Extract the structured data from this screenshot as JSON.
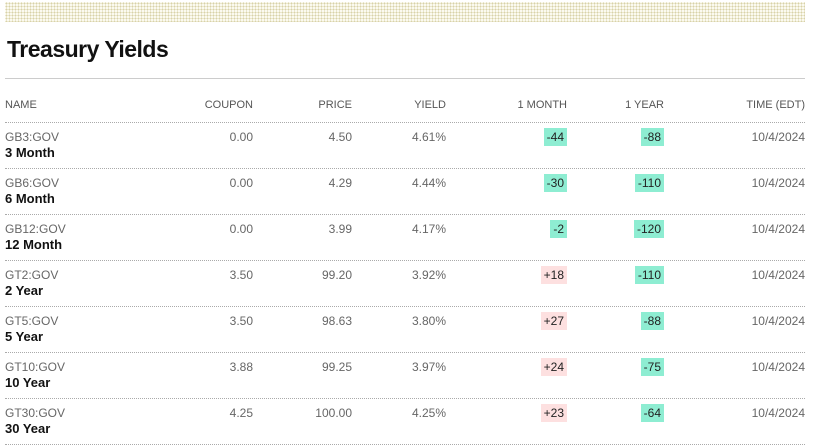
{
  "header": {
    "title": "Treasury Yields"
  },
  "table": {
    "columns": [
      "NAME",
      "COUPON",
      "PRICE",
      "YIELD",
      "1 MONTH",
      "1 YEAR",
      "TIME (EDT)"
    ],
    "rows": [
      {
        "ticker": "GB3:GOV",
        "name": "3 Month",
        "coupon": "0.00",
        "price": "4.50",
        "yield": "4.61%",
        "month": "-44",
        "year": "-88",
        "time": "10/4/2024"
      },
      {
        "ticker": "GB6:GOV",
        "name": "6 Month",
        "coupon": "0.00",
        "price": "4.29",
        "yield": "4.44%",
        "month": "-30",
        "year": "-110",
        "time": "10/4/2024"
      },
      {
        "ticker": "GB12:GOV",
        "name": "12 Month",
        "coupon": "0.00",
        "price": "3.99",
        "yield": "4.17%",
        "month": "-2",
        "year": "-120",
        "time": "10/4/2024"
      },
      {
        "ticker": "GT2:GOV",
        "name": "2 Year",
        "coupon": "3.50",
        "price": "99.20",
        "yield": "3.92%",
        "month": "+18",
        "year": "-110",
        "time": "10/4/2024"
      },
      {
        "ticker": "GT5:GOV",
        "name": "5 Year",
        "coupon": "3.50",
        "price": "98.63",
        "yield": "3.80%",
        "month": "+27",
        "year": "-88",
        "time": "10/4/2024"
      },
      {
        "ticker": "GT10:GOV",
        "name": "10 Year",
        "coupon": "3.88",
        "price": "99.25",
        "yield": "3.97%",
        "month": "+24",
        "year": "-75",
        "time": "10/4/2024"
      },
      {
        "ticker": "GT30:GOV",
        "name": "30 Year",
        "coupon": "4.25",
        "price": "100.00",
        "yield": "4.25%",
        "month": "+23",
        "year": "-64",
        "time": "10/4/2024"
      }
    ]
  }
}
